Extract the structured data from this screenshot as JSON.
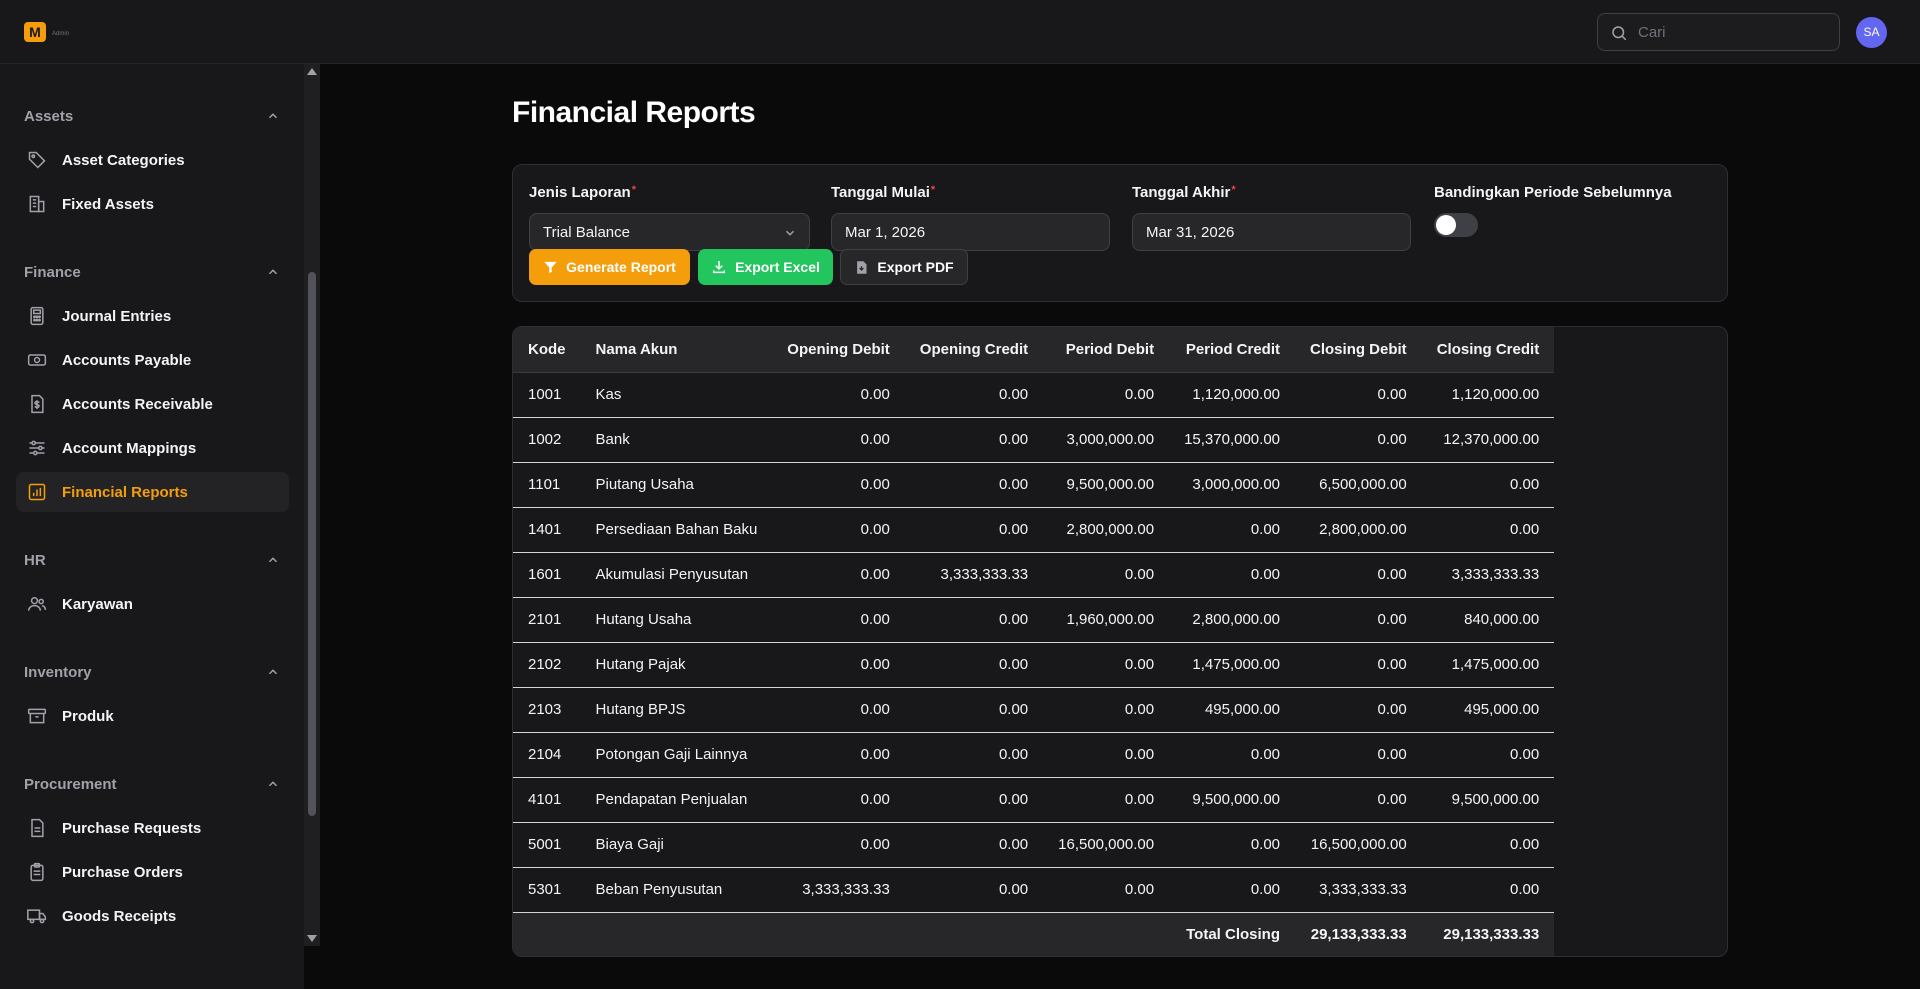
{
  "app": {
    "logo_letter": "M",
    "logo_tag": "Admin",
    "brand_color": "#f59e0b"
  },
  "header": {
    "search_placeholder": "Cari",
    "avatar_initials": "SA"
  },
  "sidebar": {
    "groups": [
      {
        "label": "Assets",
        "items": [
          {
            "label": "Asset Categories",
            "icon": "tag-icon"
          },
          {
            "label": "Fixed Assets",
            "icon": "building-icon"
          }
        ]
      },
      {
        "label": "Finance",
        "items": [
          {
            "label": "Journal Entries",
            "icon": "calculator-icon"
          },
          {
            "label": "Accounts Payable",
            "icon": "banknote-icon"
          },
          {
            "label": "Accounts Receivable",
            "icon": "dollar-document-icon"
          },
          {
            "label": "Account Mappings",
            "icon": "sliders-icon"
          },
          {
            "label": "Financial Reports",
            "icon": "bar-chart-icon",
            "active": true
          }
        ]
      },
      {
        "label": "HR",
        "items": [
          {
            "label": "Karyawan",
            "icon": "users-icon"
          }
        ]
      },
      {
        "label": "Inventory",
        "items": [
          {
            "label": "Produk",
            "icon": "archive-box-icon"
          }
        ]
      },
      {
        "label": "Procurement",
        "items": [
          {
            "label": "Purchase Requests",
            "icon": "document-icon"
          },
          {
            "label": "Purchase Orders",
            "icon": "clipboard-icon"
          },
          {
            "label": "Goods Receipts",
            "icon": "truck-icon"
          }
        ]
      }
    ]
  },
  "page": {
    "title": "Financial Reports"
  },
  "filters": {
    "report_type": {
      "label": "Jenis Laporan",
      "required_mark": "*",
      "value": "Trial Balance"
    },
    "start_date": {
      "label": "Tanggal Mulai",
      "required_mark": "*",
      "value": "Mar 1, 2026"
    },
    "end_date": {
      "label": "Tanggal Akhir",
      "required_mark": "*",
      "value": "Mar 31, 2026"
    },
    "compare": {
      "label": "Bandingkan Periode Sebelumnya",
      "enabled": false
    }
  },
  "actions": {
    "generate": "Generate Report",
    "export_excel": "Export Excel",
    "export_pdf": "Export PDF"
  },
  "table": {
    "headers": [
      "Kode",
      "Nama Akun",
      "Opening Debit",
      "Opening Credit",
      "Period Debit",
      "Period Credit",
      "Closing Debit",
      "Closing Credit"
    ],
    "rows": [
      [
        "1001",
        "Kas",
        "0.00",
        "0.00",
        "0.00",
        "1,120,000.00",
        "0.00",
        "1,120,000.00"
      ],
      [
        "1002",
        "Bank",
        "0.00",
        "0.00",
        "3,000,000.00",
        "15,370,000.00",
        "0.00",
        "12,370,000.00"
      ],
      [
        "1101",
        "Piutang Usaha",
        "0.00",
        "0.00",
        "9,500,000.00",
        "3,000,000.00",
        "6,500,000.00",
        "0.00"
      ],
      [
        "1401",
        "Persediaan Bahan Baku",
        "0.00",
        "0.00",
        "2,800,000.00",
        "0.00",
        "2,800,000.00",
        "0.00"
      ],
      [
        "1601",
        "Akumulasi Penyusutan",
        "0.00",
        "3,333,333.33",
        "0.00",
        "0.00",
        "0.00",
        "3,333,333.33"
      ],
      [
        "2101",
        "Hutang Usaha",
        "0.00",
        "0.00",
        "1,960,000.00",
        "2,800,000.00",
        "0.00",
        "840,000.00"
      ],
      [
        "2102",
        "Hutang Pajak",
        "0.00",
        "0.00",
        "0.00",
        "1,475,000.00",
        "0.00",
        "1,475,000.00"
      ],
      [
        "2103",
        "Hutang BPJS",
        "0.00",
        "0.00",
        "0.00",
        "495,000.00",
        "0.00",
        "495,000.00"
      ],
      [
        "2104",
        "Potongan Gaji Lainnya",
        "0.00",
        "0.00",
        "0.00",
        "0.00",
        "0.00",
        "0.00"
      ],
      [
        "4101",
        "Pendapatan Penjualan",
        "0.00",
        "0.00",
        "0.00",
        "9,500,000.00",
        "0.00",
        "9,500,000.00"
      ],
      [
        "5001",
        "Biaya Gaji",
        "0.00",
        "0.00",
        "16,500,000.00",
        "0.00",
        "16,500,000.00",
        "0.00"
      ],
      [
        "5301",
        "Beban Penyusutan",
        "3,333,333.33",
        "0.00",
        "0.00",
        "0.00",
        "3,333,333.33",
        "0.00"
      ]
    ],
    "total": {
      "label": "Total Closing",
      "closing_debit": "29,133,333.33",
      "closing_credit": "29,133,333.33"
    }
  }
}
